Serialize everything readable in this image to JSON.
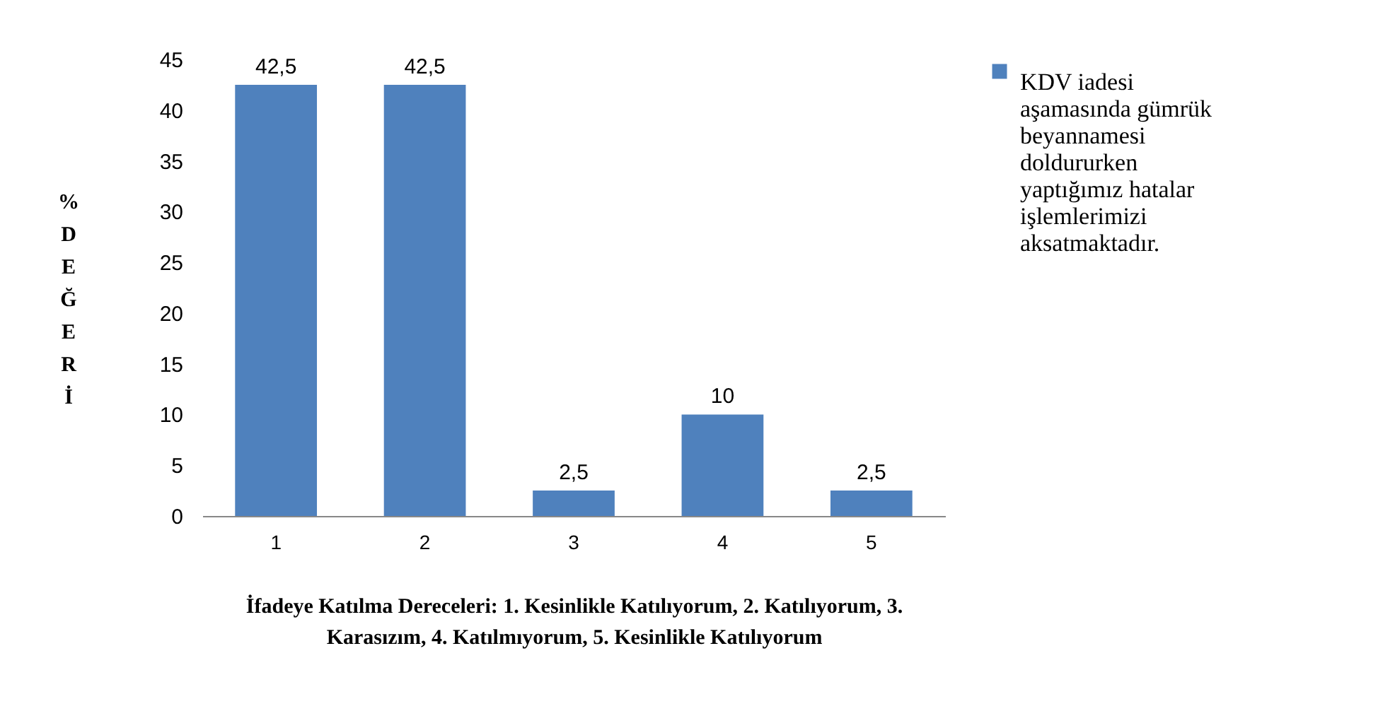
{
  "chart_data": {
    "type": "bar",
    "xlabel": "İfadeye Katılma Dereceleri:   1. Kesinlikle Katılıyorum, 2. Katılıyorum, 3. Karasızım, 4. Katılmıyorum, 5. Kesinlikle Katılıyorum",
    "ylabel": "% DEĞERİ",
    "categories": [
      "1",
      "2",
      "3",
      "4",
      "5"
    ],
    "series": [
      {
        "name": "KDV iadesi aşamasında gümrük beyannamesi doldururken yaptığımız hatalar işlemlerimizi aksatmaktadır.",
        "color": "#4f81bd",
        "values": [
          42.5,
          42.5,
          2.5,
          10,
          2.5
        ],
        "value_labels": [
          "42,5",
          "42,5",
          "2,5",
          "10",
          "2,5"
        ]
      }
    ],
    "ylim": [
      0,
      45
    ],
    "yticks": [
      0,
      5,
      10,
      15,
      20,
      25,
      30,
      35,
      40,
      45
    ],
    "grid": false,
    "legend": "right"
  }
}
